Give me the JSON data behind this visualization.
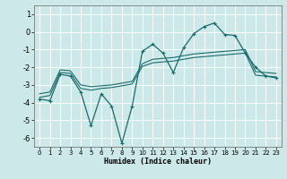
{
  "bg_color": "#cce8e8",
  "grid_color": "#ffffff",
  "line_color": "#1a6b6b",
  "x_label": "Humidex (Indice chaleur)",
  "ylim": [
    -6.5,
    1.5
  ],
  "xlim": [
    -0.5,
    23.5
  ],
  "yticks": [
    1,
    0,
    -1,
    -2,
    -3,
    -4,
    -5,
    -6
  ],
  "xticks": [
    0,
    1,
    2,
    3,
    4,
    5,
    6,
    7,
    8,
    9,
    10,
    11,
    12,
    13,
    14,
    15,
    16,
    17,
    18,
    19,
    20,
    21,
    22,
    23
  ],
  "line1_x": [
    0,
    1,
    2,
    3,
    4,
    5,
    6,
    7,
    8,
    9,
    10,
    11,
    12,
    13,
    14,
    15,
    16,
    17,
    18,
    19,
    20,
    21,
    22,
    23
  ],
  "line1_y": [
    -3.8,
    -3.9,
    -2.4,
    -2.5,
    -3.4,
    -5.3,
    -3.5,
    -4.2,
    -6.3,
    -4.2,
    -1.1,
    -0.7,
    -1.2,
    -2.3,
    -0.9,
    -0.1,
    0.3,
    0.5,
    -0.15,
    -0.2,
    -1.2,
    -2.0,
    -2.5,
    -2.6
  ],
  "line2_x": [
    0,
    1,
    2,
    3,
    4,
    5,
    6,
    7,
    8,
    9,
    10,
    11,
    12,
    13,
    14,
    15,
    16,
    17,
    18,
    19,
    20,
    21,
    22,
    23
  ],
  "line2_y": [
    -3.7,
    -3.6,
    -2.3,
    -2.35,
    -3.2,
    -3.3,
    -3.2,
    -3.15,
    -3.05,
    -2.95,
    -1.95,
    -1.75,
    -1.7,
    -1.65,
    -1.55,
    -1.45,
    -1.4,
    -1.35,
    -1.3,
    -1.25,
    -1.2,
    -2.45,
    -2.5,
    -2.55
  ],
  "line3_x": [
    0,
    1,
    2,
    3,
    4,
    5,
    6,
    7,
    8,
    9,
    10,
    11,
    12,
    13,
    14,
    15,
    16,
    17,
    18,
    19,
    20,
    21,
    22,
    23
  ],
  "line3_y": [
    -3.5,
    -3.4,
    -2.15,
    -2.2,
    -3.0,
    -3.1,
    -3.05,
    -3.0,
    -2.9,
    -2.8,
    -1.8,
    -1.55,
    -1.5,
    -1.45,
    -1.35,
    -1.25,
    -1.2,
    -1.15,
    -1.1,
    -1.05,
    -1.0,
    -2.25,
    -2.3,
    -2.35
  ]
}
